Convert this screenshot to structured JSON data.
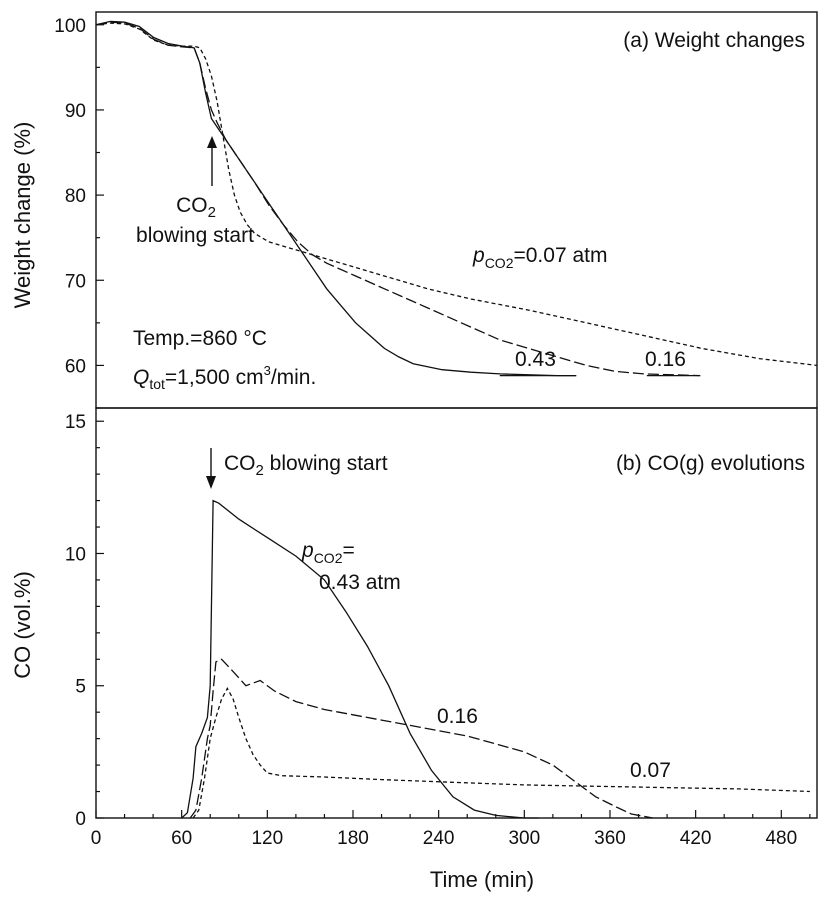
{
  "chart_data": [
    {
      "panel": "top",
      "type": "line",
      "title": "(a) Weight changes",
      "ylabel": "Weight change (%)",
      "xlim": [
        0,
        500
      ],
      "ylim": [
        55,
        101.5
      ],
      "yticks": [
        60,
        70,
        80,
        90,
        100
      ],
      "grid": false,
      "annotations": {
        "co2_label_prefix": "CO",
        "co2_label_sub": "2",
        "co2_label_line2": "blowing start",
        "p_label_p": "p",
        "p_label_sub": "CO2",
        "p_label_rest": "=0.07 atm",
        "temp": "Temp.=860 °C",
        "q_symbol": "Q",
        "q_sub": "tot",
        "q_rest": "=1,500 cm",
        "q_sup": "3",
        "q_unit": "/min.",
        "label_043": "0.43",
        "label_016": "0.16"
      },
      "series": [
        {
          "name": "0.43",
          "style": "solid",
          "points": [
            [
              0,
              100
            ],
            [
              10,
              100.4
            ],
            [
              20,
              100.3
            ],
            [
              30,
              99.8
            ],
            [
              40,
              98.5
            ],
            [
              50,
              97.8
            ],
            [
              60,
              97.5
            ],
            [
              68,
              97.3
            ],
            [
              72,
              95.5
            ],
            [
              76,
              92
            ],
            [
              80,
              89
            ],
            [
              84,
              88
            ],
            [
              90,
              86.5
            ],
            [
              100,
              84
            ],
            [
              110,
              81.5
            ],
            [
              120,
              79
            ],
            [
              130,
              76.5
            ],
            [
              140,
              74
            ],
            [
              150,
              71.5
            ],
            [
              160,
              69
            ],
            [
              170,
              67
            ],
            [
              180,
              65
            ],
            [
              190,
              63.5
            ],
            [
              200,
              62
            ],
            [
              210,
              61
            ],
            [
              220,
              60.2
            ],
            [
              240,
              59.5
            ],
            [
              260,
              59.2
            ],
            [
              280,
              59
            ],
            [
              300,
              58.9
            ],
            [
              320,
              58.8
            ],
            [
              333,
              58.8
            ]
          ]
        },
        {
          "name": "0.16",
          "style": "long-dash",
          "points": [
            [
              0,
              100
            ],
            [
              10,
              100.3
            ],
            [
              20,
              100.2
            ],
            [
              30,
              99.6
            ],
            [
              40,
              98.3
            ],
            [
              50,
              97.6
            ],
            [
              60,
              97.4
            ],
            [
              68,
              97.3
            ],
            [
              72,
              95.5
            ],
            [
              76,
              92.5
            ],
            [
              80,
              90
            ],
            [
              84,
              88.5
            ],
            [
              90,
              86.5
            ],
            [
              100,
              84
            ],
            [
              110,
              81.5
            ],
            [
              120,
              78.8
            ],
            [
              130,
              76.5
            ],
            [
              140,
              74.5
            ],
            [
              150,
              73
            ],
            [
              160,
              72
            ],
            [
              180,
              70.5
            ],
            [
              200,
              69
            ],
            [
              220,
              67.5
            ],
            [
              240,
              66
            ],
            [
              260,
              64.5
            ],
            [
              280,
              63
            ],
            [
              300,
              62
            ],
            [
              320,
              61
            ],
            [
              340,
              60
            ],
            [
              360,
              59.3
            ],
            [
              380,
              59
            ],
            [
              400,
              58.9
            ],
            [
              419,
              58.8
            ]
          ]
        },
        {
          "name": "0.07",
          "style": "short-dash",
          "points": [
            [
              0,
              100
            ],
            [
              10,
              100.2
            ],
            [
              20,
              100.1
            ],
            [
              30,
              99.5
            ],
            [
              40,
              98.2
            ],
            [
              50,
              97.6
            ],
            [
              60,
              97.5
            ],
            [
              68,
              97.5
            ],
            [
              72,
              97.3
            ],
            [
              76,
              96
            ],
            [
              80,
              94
            ],
            [
              84,
              91
            ],
            [
              88,
              87
            ],
            [
              92,
              83
            ],
            [
              96,
              80
            ],
            [
              100,
              78
            ],
            [
              105,
              76.5
            ],
            [
              110,
              75.5
            ],
            [
              120,
              74.5
            ],
            [
              130,
              74
            ],
            [
              150,
              73
            ],
            [
              170,
              72
            ],
            [
              200,
              70.5
            ],
            [
              230,
              69
            ],
            [
              260,
              67.8
            ],
            [
              300,
              66.5
            ],
            [
              340,
              65
            ],
            [
              380,
              63.5
            ],
            [
              420,
              62
            ],
            [
              460,
              60.8
            ],
            [
              500,
              60
            ]
          ]
        }
      ]
    },
    {
      "panel": "bottom",
      "type": "line",
      "title": "(b) CO(g) evolutions",
      "xlabel": "Time (min)",
      "ylabel": "CO (vol.%)",
      "xlim": [
        0,
        505
      ],
      "ylim": [
        0,
        15.5
      ],
      "xticks": [
        0,
        60,
        120,
        180,
        240,
        300,
        360,
        420,
        480
      ],
      "yticks": [
        0,
        5,
        10,
        15
      ],
      "grid": false,
      "annotations": {
        "arrow_prefix": "CO",
        "arrow_sub": "2",
        "arrow_rest": " blowing start",
        "p_p": "p",
        "p_sub": "CO2",
        "p_eq": "=",
        "p_value": "0.43 atm",
        "label_016": "0.16",
        "label_007": "0.07"
      },
      "series": [
        {
          "name": "0.43 atm",
          "style": "solid",
          "points": [
            [
              60,
              0
            ],
            [
              64,
              0.2
            ],
            [
              68,
              1.5
            ],
            [
              70,
              2.7
            ],
            [
              74,
              3.2
            ],
            [
              78,
              3.8
            ],
            [
              80,
              5
            ],
            [
              82,
              12
            ],
            [
              86,
              11.9
            ],
            [
              100,
              11.3
            ],
            [
              120,
              10.6
            ],
            [
              140,
              9.9
            ],
            [
              160,
              9.0
            ],
            [
              175,
              7.8
            ],
            [
              190,
              6.5
            ],
            [
              205,
              5.0
            ],
            [
              220,
              3.2
            ],
            [
              235,
              1.8
            ],
            [
              250,
              0.8
            ],
            [
              265,
              0.3
            ],
            [
              280,
              0.1
            ],
            [
              300,
              0
            ],
            [
              310,
              0
            ]
          ]
        },
        {
          "name": "0.16",
          "style": "long-dash",
          "points": [
            [
              66,
              0
            ],
            [
              70,
              0.3
            ],
            [
              74,
              1.5
            ],
            [
              78,
              3.0
            ],
            [
              80,
              3.5
            ],
            [
              82,
              4.8
            ],
            [
              84,
              5.9
            ],
            [
              88,
              6.0
            ],
            [
              95,
              5.6
            ],
            [
              105,
              5.0
            ],
            [
              115,
              5.2
            ],
            [
              125,
              4.8
            ],
            [
              140,
              4.4
            ],
            [
              160,
              4.1
            ],
            [
              180,
              3.9
            ],
            [
              200,
              3.7
            ],
            [
              220,
              3.5
            ],
            [
              240,
              3.3
            ],
            [
              260,
              3.1
            ],
            [
              280,
              2.8
            ],
            [
              300,
              2.5
            ],
            [
              320,
              2.0
            ],
            [
              335,
              1.4
            ],
            [
              350,
              0.8
            ],
            [
              365,
              0.4
            ],
            [
              375,
              0.15
            ],
            [
              390,
              0
            ]
          ]
        },
        {
          "name": "0.07",
          "style": "short-dash",
          "points": [
            [
              68,
              0
            ],
            [
              72,
              0.3
            ],
            [
              76,
              1.5
            ],
            [
              80,
              3.0
            ],
            [
              84,
              3.8
            ],
            [
              88,
              4.5
            ],
            [
              92,
              4.9
            ],
            [
              96,
              4.5
            ],
            [
              100,
              3.8
            ],
            [
              105,
              3.0
            ],
            [
              110,
              2.4
            ],
            [
              115,
              2.0
            ],
            [
              120,
              1.7
            ],
            [
              130,
              1.6
            ],
            [
              160,
              1.55
            ],
            [
              200,
              1.45
            ],
            [
              250,
              1.35
            ],
            [
              300,
              1.25
            ],
            [
              350,
              1.2
            ],
            [
              400,
              1.15
            ],
            [
              450,
              1.1
            ],
            [
              500,
              1.0
            ]
          ]
        }
      ]
    }
  ]
}
